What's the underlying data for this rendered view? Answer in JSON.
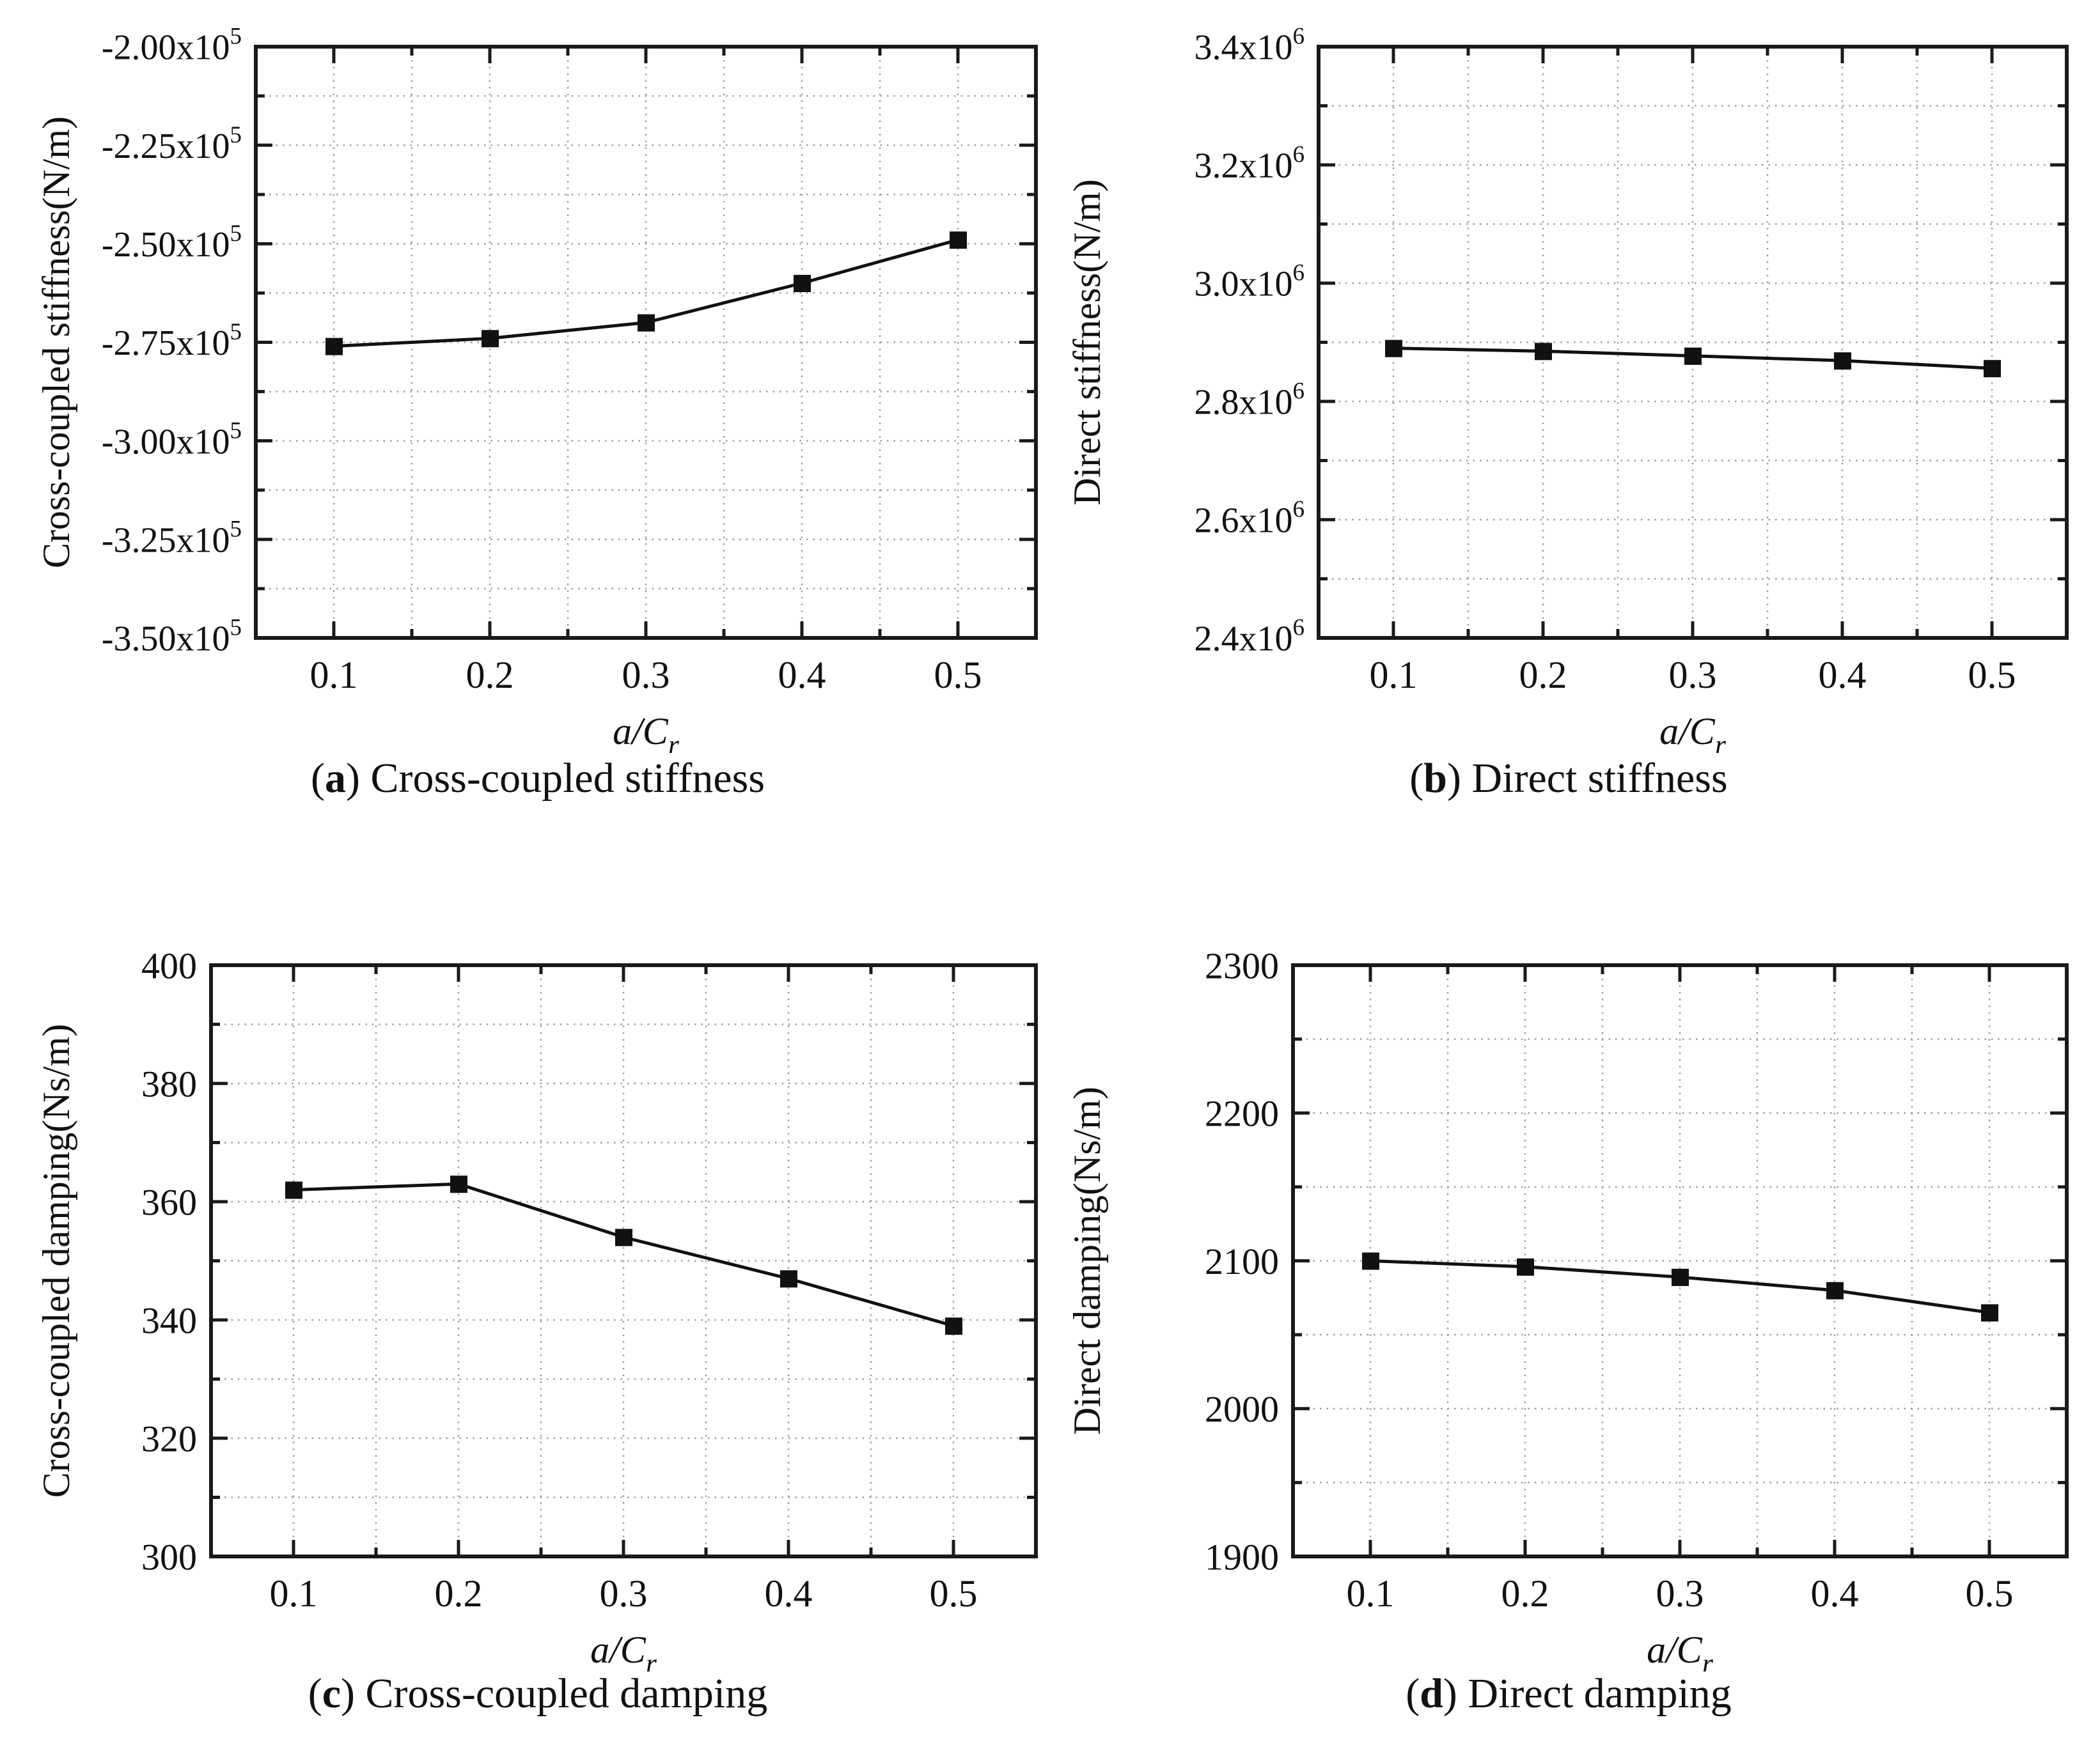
{
  "page": {
    "background": "#ffffff"
  },
  "chart_data": [
    {
      "id": "a",
      "type": "line",
      "title": "",
      "grid": "dotted",
      "caption": {
        "open": "(",
        "letter": "a",
        "close": ")",
        "text": " Cross-coupled stiffness"
      },
      "ylabel": "Cross-coupled stiffness(N/m)",
      "xlabel": {
        "num": "a",
        "slash": "/",
        "den": "C",
        "sub": "r"
      },
      "x": [
        0.1,
        0.2,
        0.3,
        0.4,
        0.5
      ],
      "y": [
        -276000,
        -274000,
        -270000,
        -260000,
        -249000
      ],
      "xlim": [
        0.05,
        0.55
      ],
      "ylim": [
        -350000,
        -200000
      ],
      "x_major": 0.1,
      "x_minor": 0.05,
      "y_major": 25000,
      "y_minor": 12500,
      "xticks": [
        {
          "v": 0.1,
          "t": "0.1"
        },
        {
          "v": 0.2,
          "t": "0.2"
        },
        {
          "v": 0.3,
          "t": "0.3"
        },
        {
          "v": 0.4,
          "t": "0.4"
        },
        {
          "v": 0.5,
          "t": "0.5"
        }
      ],
      "yticks": [
        {
          "v": -200000,
          "t": "-2.00x10",
          "sup": "5"
        },
        {
          "v": -225000,
          "t": "-2.25x10",
          "sup": "5"
        },
        {
          "v": -250000,
          "t": "-2.50x10",
          "sup": "5"
        },
        {
          "v": -275000,
          "t": "-2.75x10",
          "sup": "5"
        },
        {
          "v": -300000,
          "t": "-3.00x10",
          "sup": "5"
        },
        {
          "v": -325000,
          "t": "-3.25x10",
          "sup": "5"
        },
        {
          "v": -350000,
          "t": "-3.50x10",
          "sup": "5"
        }
      ],
      "colors": {
        "line": "#111111",
        "marker": "#111111",
        "grid": "#9e9e9e",
        "frame": "#1a1a1a"
      }
    },
    {
      "id": "b",
      "type": "line",
      "title": "",
      "grid": "dotted",
      "caption": {
        "open": "(",
        "letter": "b",
        "close": ")",
        "text": " Direct stiffness"
      },
      "ylabel": "Direct stiffness(N/m)",
      "xlabel": {
        "num": "a",
        "slash": "/",
        "den": "C",
        "sub": "r"
      },
      "x": [
        0.1,
        0.2,
        0.3,
        0.4,
        0.5
      ],
      "y": [
        2890000,
        2885000,
        2877000,
        2869000,
        2856000
      ],
      "xlim": [
        0.05,
        0.55
      ],
      "ylim": [
        2400000,
        3400000
      ],
      "x_major": 0.1,
      "x_minor": 0.05,
      "y_major": 200000,
      "y_minor": 100000,
      "xticks": [
        {
          "v": 0.1,
          "t": "0.1"
        },
        {
          "v": 0.2,
          "t": "0.2"
        },
        {
          "v": 0.3,
          "t": "0.3"
        },
        {
          "v": 0.4,
          "t": "0.4"
        },
        {
          "v": 0.5,
          "t": "0.5"
        }
      ],
      "yticks": [
        {
          "v": 3400000,
          "t": "3.4x10",
          "sup": "6"
        },
        {
          "v": 3200000,
          "t": "3.2x10",
          "sup": "6"
        },
        {
          "v": 3000000,
          "t": "3.0x10",
          "sup": "6"
        },
        {
          "v": 2800000,
          "t": "2.8x10",
          "sup": "6"
        },
        {
          "v": 2600000,
          "t": "2.6x10",
          "sup": "6"
        },
        {
          "v": 2400000,
          "t": "2.4x10",
          "sup": "6"
        }
      ],
      "colors": {
        "line": "#111111",
        "marker": "#111111",
        "grid": "#9e9e9e",
        "frame": "#1a1a1a"
      }
    },
    {
      "id": "c",
      "type": "line",
      "title": "",
      "grid": "dotted",
      "caption": {
        "open": "(",
        "letter": "c",
        "close": ")",
        "text": " Cross-coupled damping"
      },
      "ylabel": "Cross-coupled damping(Ns/m)",
      "xlabel": {
        "num": "a",
        "slash": "/",
        "den": "C",
        "sub": "r"
      },
      "x": [
        0.1,
        0.2,
        0.3,
        0.4,
        0.5
      ],
      "y": [
        362,
        363,
        354,
        347,
        339
      ],
      "xlim": [
        0.05,
        0.55
      ],
      "ylim": [
        300,
        400
      ],
      "x_major": 0.1,
      "x_minor": 0.05,
      "y_major": 20,
      "y_minor": 10,
      "xticks": [
        {
          "v": 0.1,
          "t": "0.1"
        },
        {
          "v": 0.2,
          "t": "0.2"
        },
        {
          "v": 0.3,
          "t": "0.3"
        },
        {
          "v": 0.4,
          "t": "0.4"
        },
        {
          "v": 0.5,
          "t": "0.5"
        }
      ],
      "yticks": [
        {
          "v": 400,
          "t": "400"
        },
        {
          "v": 380,
          "t": "380"
        },
        {
          "v": 360,
          "t": "360"
        },
        {
          "v": 340,
          "t": "340"
        },
        {
          "v": 320,
          "t": "320"
        },
        {
          "v": 300,
          "t": "300"
        }
      ],
      "colors": {
        "line": "#111111",
        "marker": "#111111",
        "grid": "#9e9e9e",
        "frame": "#1a1a1a"
      }
    },
    {
      "id": "d",
      "type": "line",
      "title": "",
      "grid": "dotted",
      "caption": {
        "open": "(",
        "letter": "d",
        "close": ")",
        "text": " Direct damping"
      },
      "ylabel": "Direct damping(Ns/m)",
      "xlabel": {
        "num": "a",
        "slash": "/",
        "den": "C",
        "sub": "r"
      },
      "x": [
        0.1,
        0.2,
        0.3,
        0.4,
        0.5
      ],
      "y": [
        2100,
        2096,
        2089,
        2080,
        2065
      ],
      "xlim": [
        0.05,
        0.55
      ],
      "ylim": [
        1900,
        2300
      ],
      "x_major": 0.1,
      "x_minor": 0.05,
      "y_major": 100,
      "y_minor": 50,
      "xticks": [
        {
          "v": 0.1,
          "t": "0.1"
        },
        {
          "v": 0.2,
          "t": "0.2"
        },
        {
          "v": 0.3,
          "t": "0.3"
        },
        {
          "v": 0.4,
          "t": "0.4"
        },
        {
          "v": 0.5,
          "t": "0.5"
        }
      ],
      "yticks": [
        {
          "v": 2300,
          "t": "2300"
        },
        {
          "v": 2200,
          "t": "2200"
        },
        {
          "v": 2100,
          "t": "2100"
        },
        {
          "v": 2000,
          "t": "2000"
        },
        {
          "v": 1900,
          "t": "1900"
        }
      ],
      "colors": {
        "line": "#111111",
        "marker": "#111111",
        "grid": "#9e9e9e",
        "frame": "#1a1a1a"
      }
    }
  ]
}
